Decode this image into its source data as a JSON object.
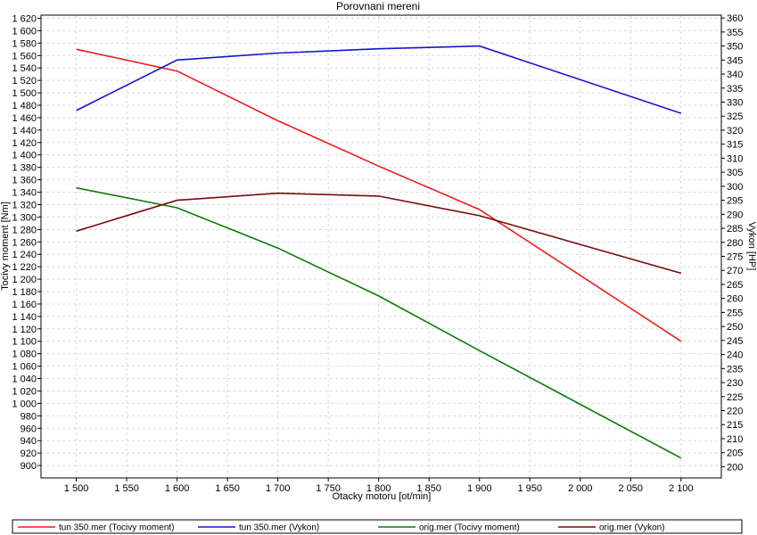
{
  "chart_data": {
    "type": "line",
    "title": "Porovnani mereni",
    "xlabel": "Otacky motoru [ot/min]",
    "ylabel_left": "Tocivy moment [Nm]",
    "ylabel_right": "Vykon [HP]",
    "xlim": [
      1465,
      2140
    ],
    "ylim_left": [
      880,
      1625
    ],
    "ylim_right": [
      196,
      361
    ],
    "x_ticks": [
      1500,
      1550,
      1600,
      1650,
      1700,
      1750,
      1800,
      1850,
      1900,
      1950,
      2000,
      2050,
      2100
    ],
    "x_tick_labels": [
      "1 500",
      "1 550",
      "1 600",
      "1 650",
      "1 700",
      "1 750",
      "1 800",
      "1 850",
      "1 900",
      "1 950",
      "2 000",
      "2 050",
      "2 100"
    ],
    "y_left_ticks": [
      900,
      920,
      940,
      960,
      980,
      1000,
      1020,
      1040,
      1060,
      1080,
      1100,
      1120,
      1140,
      1160,
      1180,
      1200,
      1220,
      1240,
      1260,
      1280,
      1300,
      1320,
      1340,
      1360,
      1380,
      1400,
      1420,
      1440,
      1460,
      1480,
      1500,
      1520,
      1540,
      1560,
      1580,
      1600,
      1620
    ],
    "y_left_tick_labels": [
      "900",
      "920",
      "940",
      "960",
      "980",
      "1 000",
      "1 020",
      "1 040",
      "1 060",
      "1 080",
      "1 100",
      "1 120",
      "1 140",
      "1 160",
      "1 180",
      "1 200",
      "1 220",
      "1 240",
      "1 260",
      "1 280",
      "1 300",
      "1 320",
      "1 340",
      "1 360",
      "1 380",
      "1 400",
      "1 420",
      "1 440",
      "1 460",
      "1 480",
      "1 500",
      "1 520",
      "1 540",
      "1 560",
      "1 580",
      "1 600",
      "1 620"
    ],
    "y_right_ticks": [
      200,
      205,
      210,
      215,
      220,
      225,
      230,
      235,
      240,
      245,
      250,
      255,
      260,
      265,
      270,
      275,
      280,
      285,
      290,
      295,
      300,
      305,
      310,
      315,
      320,
      325,
      330,
      335,
      340,
      345,
      350,
      355,
      360
    ],
    "y_right_tick_labels": [
      "200",
      "205",
      "210",
      "215",
      "220",
      "225",
      "230",
      "235",
      "240",
      "245",
      "250",
      "255",
      "260",
      "265",
      "270",
      "275",
      "280",
      "285",
      "290",
      "295",
      "300",
      "305",
      "310",
      "315",
      "320",
      "325",
      "330",
      "335",
      "340",
      "345",
      "350",
      "355",
      "360"
    ],
    "grid": true,
    "legend_placement": "bottom",
    "series": [
      {
        "name": "tun 350.mer  (Tocivy moment)",
        "axis": "left",
        "color": "#ee1c1c",
        "x": [
          1500,
          1600,
          1700,
          1800,
          1900,
          2100
        ],
        "y": [
          1570,
          1535,
          1455,
          1382,
          1312,
          1100
        ]
      },
      {
        "name": "tun 350.mer  (Vykon)",
        "axis": "right",
        "color": "#1414d2",
        "x": [
          1500,
          1600,
          1700,
          1800,
          1900,
          2100
        ],
        "y": [
          327,
          345,
          347.5,
          349,
          350,
          326
        ]
      },
      {
        "name": "orig.mer  (Tocivy moment)",
        "axis": "left",
        "color": "#0b7a0b",
        "x": [
          1500,
          1600,
          1700,
          1800,
          1900,
          2100
        ],
        "y": [
          1347,
          1315,
          1250,
          1173,
          1085,
          912
        ]
      },
      {
        "name": "orig.mer  (Vykon)",
        "axis": "right",
        "color": "#7a0a0a",
        "x": [
          1500,
          1600,
          1700,
          1800,
          1900,
          2100
        ],
        "y": [
          284,
          295,
          297.5,
          296.5,
          289.5,
          269
        ]
      }
    ]
  }
}
